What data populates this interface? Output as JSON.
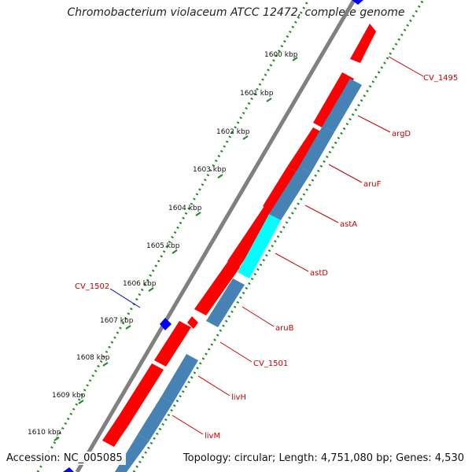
{
  "title": "Chromobacterium violaceum ATCC 12472, complete genome",
  "footer": {
    "accession": "Accession: NC_005085",
    "topology": "Topology: circular; Length: 4,751,080 bp; Genes: 4,530"
  },
  "colors": {
    "forward_cds": "#ff0000",
    "reverse_cds": "#4682b4",
    "highlight_cds": "#00ffff",
    "blue_feature": "#0000ff",
    "label_forward": "#cc0000",
    "label_blue": "#0000cc",
    "dotted_ring": "#1f8a1f",
    "backbone": "#808080"
  },
  "ticks": [
    "1600 kbp",
    "1601 kbp",
    "1602 kbp",
    "1603 kbp",
    "1604 kbp",
    "1605 kbp",
    "1606 kbp",
    "1607 kbp",
    "1608 kbp",
    "1609 kbp",
    "1610 kbp"
  ],
  "labels": [
    "CV_1495",
    "argD",
    "aruF",
    "astA",
    "astD",
    "aruB",
    "CV_1501",
    "livH",
    "livM",
    "CV_1502"
  ]
}
